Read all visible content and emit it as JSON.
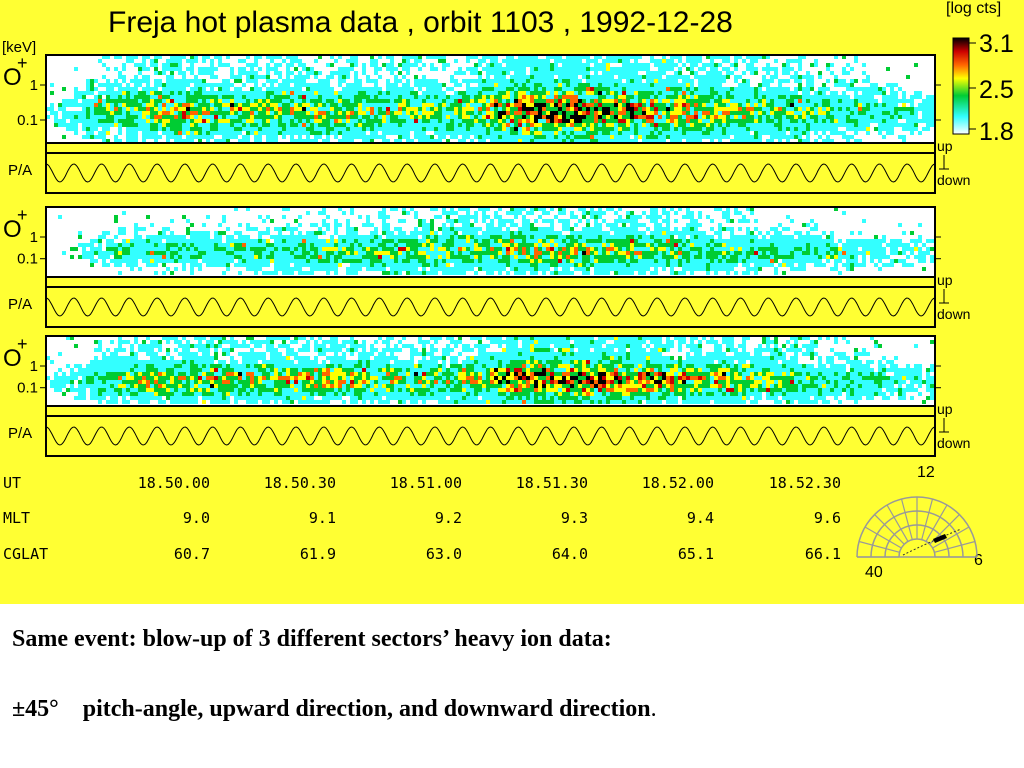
{
  "chart_data": {
    "type": "heatmap",
    "title": "Freja hot plasma data ,  orbit 1103 ,    1992-12-28",
    "colorbar": {
      "label": "[log cts]",
      "ticks": [
        "3.1",
        "2.5",
        "1.8"
      ],
      "range": [
        1.8,
        3.1
      ],
      "colors": [
        "#ffffff",
        "#33ffff",
        "#00cc33",
        "#ffff00",
        "#ff6600",
        "#cc0000",
        "#000000"
      ]
    },
    "energy_unit": "[keV]",
    "panels": [
      {
        "species": "O",
        "charge": "+",
        "energy_ticks": [
          "1",
          "0.1"
        ],
        "pa_label": "P/A",
        "pa_up": "up",
        "pa_down": "down",
        "pa_cycles": 32,
        "intensity_profile": [
          0.2,
          0.55,
          0.7,
          0.6,
          0.65,
          0.6,
          0.55,
          0.95,
          0.9,
          0.75,
          0.65,
          0.55,
          0.45,
          0.3
        ]
      },
      {
        "species": "O",
        "charge": "+",
        "energy_ticks": [
          "1",
          "0.1"
        ],
        "pa_label": "P/A",
        "pa_up": "up",
        "pa_down": "down",
        "pa_cycles": 32,
        "intensity_profile": [
          0.1,
          0.4,
          0.45,
          0.45,
          0.5,
          0.55,
          0.6,
          0.7,
          0.65,
          0.6,
          0.5,
          0.45,
          0.35,
          0.25
        ]
      },
      {
        "species": "O",
        "charge": "+",
        "energy_ticks": [
          "1",
          "0.1"
        ],
        "pa_label": "P/A",
        "pa_up": "up",
        "pa_down": "down",
        "pa_cycles": 32,
        "intensity_profile": [
          0.2,
          0.6,
          0.7,
          0.65,
          0.7,
          0.65,
          0.6,
          1.0,
          0.95,
          0.8,
          0.65,
          0.55,
          0.45,
          0.3
        ]
      }
    ],
    "x_axis": {
      "rows": [
        {
          "label": "UT",
          "values": [
            "18.50.00",
            "18.50.30",
            "18.51.00",
            "18.51.30",
            "18.52.00",
            "18.52.30"
          ]
        },
        {
          "label": "MLT",
          "values": [
            "9.0",
            "9.1",
            "9.2",
            "9.3",
            "9.4",
            "9.6"
          ]
        },
        {
          "label": "CGLAT",
          "values": [
            "60.7",
            "61.9",
            "63.0",
            "64.0",
            "65.1",
            "66.1"
          ]
        }
      ]
    },
    "polar_inset": {
      "labels": {
        "top": "12",
        "right": "6",
        "left": "40"
      }
    }
  },
  "caption": {
    "line1": "Same event: blow-up of 3 different sectors’ heavy ion data:",
    "line2": "±45°　pitch-angle, upward direction, and downward direction",
    "line2_end": "."
  }
}
